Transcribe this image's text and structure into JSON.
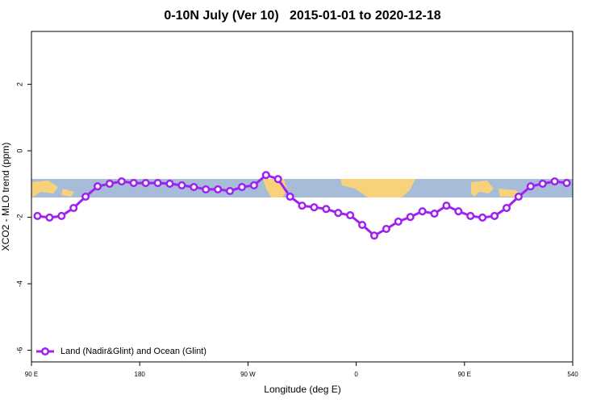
{
  "chart_data": {
    "type": "line",
    "title": "0-10N July (Ver 10)   2015-01-01 to 2020-12-18",
    "xlabel": "Longitude (deg E)",
    "ylabel": "XCO2 - MLO trend (ppm)",
    "x": [
      95,
      105,
      115,
      125,
      135,
      145,
      155,
      165,
      175,
      185,
      195,
      205,
      215,
      225,
      235,
      245,
      255,
      265,
      275,
      285,
      295,
      305,
      315,
      325,
      335,
      345,
      355,
      365,
      375,
      385,
      395,
      405,
      415,
      425,
      435,
      445,
      455,
      465,
      475,
      485,
      495,
      505,
      515,
      525,
      535
    ],
    "series": [
      {
        "name": "Land (Nadir&Glint) and Ocean (Glint)",
        "color": "#a020f0",
        "values": [
          -1.96,
          -2.01,
          -1.96,
          -1.72,
          -1.38,
          -1.07,
          -0.99,
          -0.92,
          -0.97,
          -0.97,
          -0.97,
          -0.99,
          -1.04,
          -1.09,
          -1.16,
          -1.16,
          -1.21,
          -1.09,
          -1.04,
          -0.73,
          -0.85,
          -1.38,
          -1.65,
          -1.7,
          -1.75,
          -1.87,
          -1.94,
          -2.23,
          -2.55,
          -2.35,
          -2.13,
          -1.99,
          -1.82,
          -1.89,
          -1.65,
          -1.82,
          -1.96,
          -2.01,
          -1.96,
          -1.72,
          -1.38,
          -1.07,
          -0.99,
          -0.92,
          -0.97
        ]
      }
    ],
    "xlim": [
      90,
      540
    ],
    "xticks": [
      {
        "value": 90,
        "label": "90 E"
      },
      180,
      {
        "value": 270,
        "label": "90 W"
      },
      {
        "value": 360,
        "label": "0"
      },
      {
        "value": 450,
        "label": "90 E"
      },
      540
    ],
    "ylim": [
      -6.35,
      3.59
    ],
    "yticks": [
      2,
      0,
      -2,
      -4,
      -6
    ],
    "legend": "bottom-left"
  }
}
